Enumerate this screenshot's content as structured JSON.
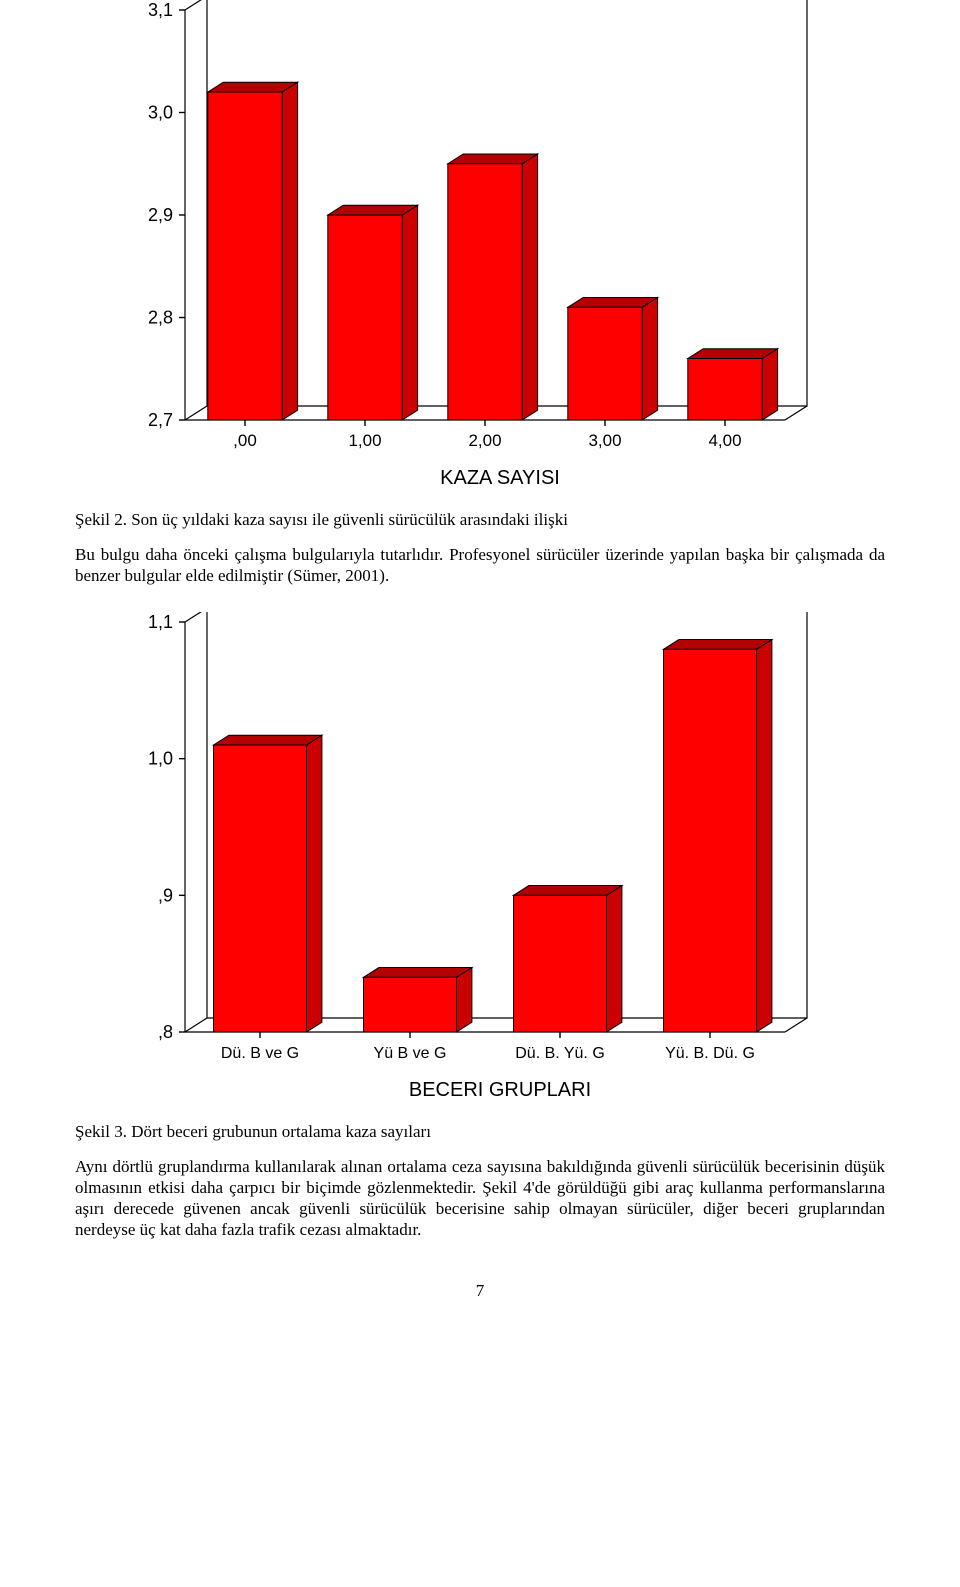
{
  "chart1": {
    "type": "bar-3d",
    "x_axis_title": "KAZA SAYISI",
    "categories": [
      ",00",
      "1,00",
      "2,00",
      "3,00",
      "4,00"
    ],
    "values": [
      3.02,
      2.9,
      2.95,
      2.81,
      2.76
    ],
    "y_ticks": [
      "3,1",
      "3,0",
      "2,9",
      "2,8",
      "2,7"
    ],
    "y_tick_values": [
      3.1,
      3.0,
      2.9,
      2.8,
      2.7
    ],
    "ylim_min": 2.7,
    "ylim_max": 3.1,
    "bar_face_color": "#ff0000",
    "bar_top_color": "#b30000",
    "bar_side_color": "#cc0000",
    "frame_color": "#000000",
    "tick_font_size": 18,
    "tick_font_size_x": 17
  },
  "caption1_label": "Şekil 2.",
  "caption1_text": "Son üç yıldaki kaza sayısı ile güvenli sürücülük arasındaki ilişki",
  "paragraph1": "Bu bulgu daha önceki çalışma bulgularıyla tutarlıdır. Profesyonel sürücüler üzerinde yapılan başka bir çalışmada da benzer bulgular elde edilmiştir (Sümer, 2001).",
  "chart2": {
    "type": "bar-3d",
    "x_axis_title": "BECERI GRUPLARI",
    "categories": [
      "Dü. B ve G",
      "Yü B ve G",
      "Dü. B. Yü. G",
      "Yü. B. Dü. G"
    ],
    "values": [
      1.01,
      0.84,
      0.9,
      1.08
    ],
    "y_ticks": [
      "1,1",
      "1,0",
      ",9",
      ",8"
    ],
    "y_tick_values": [
      1.1,
      1.0,
      0.9,
      0.8
    ],
    "ylim_min": 0.8,
    "ylim_max": 1.1,
    "bar_face_color": "#ff0000",
    "bar_top_color": "#b30000",
    "bar_side_color": "#cc0000",
    "frame_color": "#000000",
    "tick_font_size": 18,
    "tick_font_size_x": 16
  },
  "caption2_label": "Şekil 3.",
  "caption2_text": "Dört beceri grubunun ortalama kaza sayıları",
  "paragraph2": "Aynı dörtlü gruplandırma kullanılarak alınan ortalama ceza sayısına bakıldığında güvenli sürücülük becerisinin düşük olmasının etkisi daha çarpıcı bir biçimde gözlenmektedir. Şekil 4'de görüldüğü gibi araç kullanma performanslarına aşırı derecede güvenen ancak güvenli sürücülük becerisine sahip olmayan sürücüler, diğer beceri gruplarından nerdeyse üç kat daha fazla trafik cezası almaktadır.",
  "page_number": "7"
}
